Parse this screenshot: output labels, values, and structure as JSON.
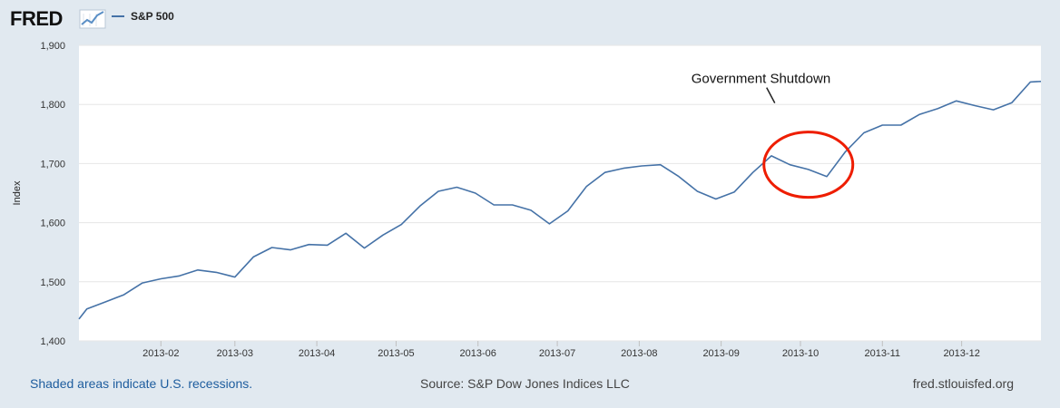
{
  "brand": {
    "name": "FRED",
    "logo_icon": "trend-graph-icon"
  },
  "footer": {
    "recession_note": "Shaded areas indicate U.S. recessions.",
    "source": "Source: S&P Dow Jones Indices LLC",
    "site": "fred.stlouisfed.org"
  },
  "colors": {
    "line": "#4572a7",
    "annotation_circle": "#ee1d00",
    "background": "#e1e9f0",
    "plot": "#ffffff"
  },
  "chart_data": {
    "type": "line",
    "title": "",
    "xlabel": "",
    "ylabel": "Index",
    "ylim": [
      1400,
      1900
    ],
    "yticks": [
      1400,
      1500,
      1600,
      1700,
      1800,
      1900
    ],
    "ytick_labels": [
      "1,400",
      "1,500",
      "1,600",
      "1,700",
      "1,800",
      "1,900"
    ],
    "x_start": "2013-01-01",
    "x_end": "2013-12-31",
    "xticks": [
      "2013-02",
      "2013-03",
      "2013-04",
      "2013-05",
      "2013-06",
      "2013-07",
      "2013-08",
      "2013-09",
      "2013-10",
      "2013-11",
      "2013-12"
    ],
    "xtick_dates": [
      "2013-02-01",
      "2013-03-01",
      "2013-04-01",
      "2013-05-01",
      "2013-06-01",
      "2013-07-01",
      "2013-08-01",
      "2013-09-01",
      "2013-10-01",
      "2013-11-01",
      "2013-12-01"
    ],
    "grid": true,
    "series": [
      {
        "name": "S&P 500",
        "x": [
          "2013-01-01",
          "2013-01-04",
          "2013-01-11",
          "2013-01-18",
          "2013-01-25",
          "2013-02-01",
          "2013-02-08",
          "2013-02-15",
          "2013-02-22",
          "2013-03-01",
          "2013-03-08",
          "2013-03-15",
          "2013-03-22",
          "2013-03-29",
          "2013-04-05",
          "2013-04-12",
          "2013-04-19",
          "2013-04-26",
          "2013-05-03",
          "2013-05-10",
          "2013-05-17",
          "2013-05-24",
          "2013-05-31",
          "2013-06-07",
          "2013-06-14",
          "2013-06-21",
          "2013-06-28",
          "2013-07-05",
          "2013-07-12",
          "2013-07-19",
          "2013-07-26",
          "2013-08-02",
          "2013-08-09",
          "2013-08-16",
          "2013-08-23",
          "2013-08-30",
          "2013-09-06",
          "2013-09-13",
          "2013-09-20",
          "2013-09-27",
          "2013-10-04",
          "2013-10-11",
          "2013-10-18",
          "2013-10-25",
          "2013-11-01",
          "2013-11-08",
          "2013-11-15",
          "2013-11-22",
          "2013-11-29",
          "2013-12-06",
          "2013-12-13",
          "2013-12-20",
          "2013-12-27",
          "2013-12-31"
        ],
        "values": [
          1437,
          1454,
          1466,
          1478,
          1498,
          1505,
          1510,
          1520,
          1516,
          1508,
          1542,
          1558,
          1554,
          1563,
          1562,
          1582,
          1557,
          1579,
          1597,
          1628,
          1653,
          1660,
          1650,
          1630,
          1630,
          1621,
          1598,
          1620,
          1661,
          1685,
          1692,
          1696,
          1698,
          1678,
          1653,
          1640,
          1652,
          1685,
          1713,
          1698,
          1690,
          1678,
          1720,
          1752,
          1765,
          1765,
          1783,
          1793,
          1806,
          1798,
          1791,
          1803,
          1838,
          1839
        ]
      }
    ],
    "annotations": [
      {
        "text": "Government Shutdown",
        "target_date": "2013-10-04",
        "target_value": 1695
      }
    ]
  }
}
